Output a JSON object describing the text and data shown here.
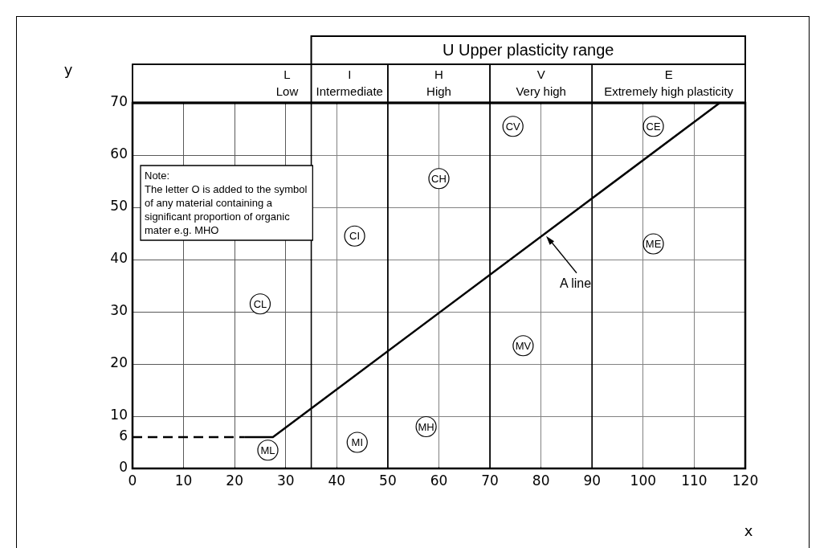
{
  "chart_data": {
    "type": "line",
    "xlabel": "x",
    "ylabel": "y",
    "xlim": [
      0,
      120
    ],
    "xticks": [
      0,
      10,
      20,
      30,
      40,
      50,
      60,
      70,
      80,
      90,
      100,
      110,
      120
    ],
    "ylim": [
      0,
      70
    ],
    "yticks": [
      0,
      6,
      10,
      20,
      30,
      40,
      50,
      60,
      70
    ],
    "grid": true,
    "legend": false,
    "marker": "none",
    "series": [
      {
        "color": "#000000",
        "x": [
          22,
          27.5,
          115
        ],
        "values": [
          6,
          6,
          70
        ]
      },
      {
        "color": "#000000",
        "x": [
          0,
          22
        ],
        "values": [
          6,
          6
        ],
        "line_style": "dashed"
      }
    ],
    "bands": [
      {
        "axis": "x",
        "from": 0,
        "to": 35,
        "label": "L Low",
        "color": "#ffffff"
      },
      {
        "axis": "x",
        "from": 35,
        "to": 50,
        "label": "I Intermediate",
        "color": "#ffffff"
      },
      {
        "axis": "x",
        "from": 50,
        "to": 70,
        "label": "H High",
        "color": "#ffffff"
      },
      {
        "axis": "x",
        "from": 70,
        "to": 90,
        "label": "V Very high",
        "color": "#ffffff"
      },
      {
        "axis": "x",
        "from": 90,
        "to": 120,
        "label": "E Extremely high plasticity",
        "color": "#ffffff"
      },
      {
        "axis": "x",
        "from": 35,
        "to": 120,
        "label": "U Upper plasticity range",
        "color": "#ffffff"
      }
    ],
    "annotations": [
      "Note:\nThe letter O is added to the symbol\nof any material containing a\nsignificant proportion of organic\nmater e.g. MHO",
      {
        "text": "A line",
        "x": 81,
        "y": 44.5
      },
      {
        "text": "CL",
        "x": 25,
        "y": 31.5
      },
      {
        "text": "ML",
        "x": 26.5,
        "y": 3.5
      },
      {
        "text": "MI",
        "x": 44,
        "y": 5
      },
      {
        "text": "MH",
        "x": 57.5,
        "y": 8
      },
      {
        "text": "CI",
        "x": 43.5,
        "y": 44.5
      },
      {
        "text": "CH",
        "x": 60,
        "y": 55.5
      },
      {
        "text": "CV",
        "x": 74.5,
        "y": 65.5
      },
      {
        "text": "CE",
        "x": 102,
        "y": 65.5
      },
      {
        "text": "ME",
        "x": 102,
        "y": 43
      },
      {
        "text": "MV",
        "x": 76.5,
        "y": 23.5
      }
    ]
  }
}
